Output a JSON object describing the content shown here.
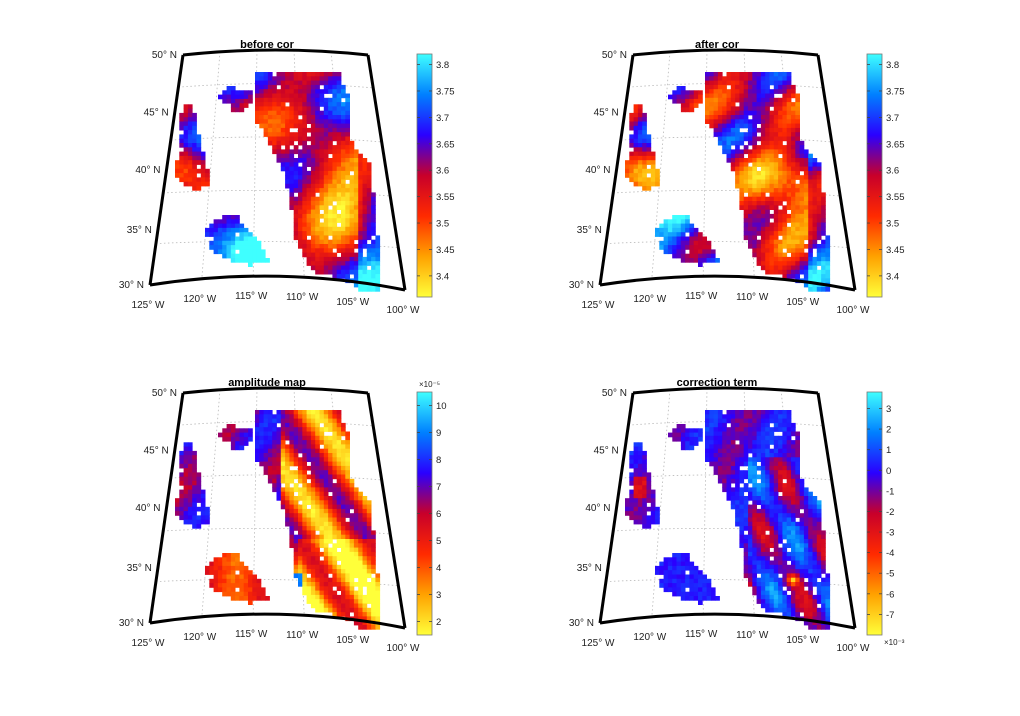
{
  "chart_data": [
    {
      "type": "heatmap",
      "title": "before cor",
      "lat_ticks": [
        "50° N",
        "45° N",
        "40° N",
        "35° N",
        "30° N"
      ],
      "lon_ticks": [
        "125° W",
        "120° W",
        "115° W",
        "110° W",
        "105° W",
        "100° W"
      ],
      "colorbar": {
        "ticks": [
          "3.8",
          "3.75",
          "3.7",
          "3.65",
          "3.6",
          "3.55",
          "3.5",
          "3.45",
          "3.4"
        ],
        "range": [
          3.36,
          3.82
        ],
        "exponent": ""
      },
      "colormap": [
        "#ffff3a",
        "#ffa200",
        "#ff2a00",
        "#c8002a",
        "#2a00ff",
        "#0080ff",
        "#3fffff"
      ]
    },
    {
      "type": "heatmap",
      "title": "after cor",
      "lat_ticks": [
        "50° N",
        "45° N",
        "40° N",
        "35° N",
        "30° N"
      ],
      "lon_ticks": [
        "125° W",
        "120° W",
        "115° W",
        "110° W",
        "105° W",
        "100° W"
      ],
      "colorbar": {
        "ticks": [
          "3.8",
          "3.75",
          "3.7",
          "3.65",
          "3.6",
          "3.55",
          "3.5",
          "3.45",
          "3.4"
        ],
        "range": [
          3.36,
          3.82
        ],
        "exponent": ""
      },
      "colormap": [
        "#ffff3a",
        "#ffa200",
        "#ff2a00",
        "#c8002a",
        "#2a00ff",
        "#0080ff",
        "#3fffff"
      ]
    },
    {
      "type": "heatmap",
      "title": "amplitude map",
      "lat_ticks": [
        "50° N",
        "45° N",
        "40° N",
        "35° N",
        "30° N"
      ],
      "lon_ticks": [
        "125° W",
        "120° W",
        "115° W",
        "110° W",
        "105° W",
        "100° W"
      ],
      "colorbar": {
        "ticks": [
          "10",
          "9",
          "8",
          "7",
          "6",
          "5",
          "4",
          "3",
          "2"
        ],
        "range": [
          1.5,
          10.5
        ],
        "exponent": "×10⁻⁵"
      },
      "colormap": [
        "#ffff3a",
        "#ffa200",
        "#ff2a00",
        "#c8002a",
        "#2a00ff",
        "#0080ff",
        "#3fffff"
      ]
    },
    {
      "type": "heatmap",
      "title": "correction term",
      "lat_ticks": [
        "50° N",
        "45° N",
        "40° N",
        "35° N",
        "30° N"
      ],
      "lon_ticks": [
        "125° W",
        "120° W",
        "115° W",
        "110° W",
        "105° W",
        "100° W"
      ],
      "colorbar": {
        "ticks": [
          "3",
          "2",
          "1",
          "0",
          "-1",
          "-2",
          "-3",
          "-4",
          "-5",
          "-6",
          "-7"
        ],
        "range": [
          -8,
          3.8
        ],
        "exponent": "×10⁻³"
      },
      "colormap": [
        "#ffff3a",
        "#ffa200",
        "#ff2a00",
        "#c8002a",
        "#2a00ff",
        "#0080ff",
        "#3fffff"
      ]
    }
  ]
}
